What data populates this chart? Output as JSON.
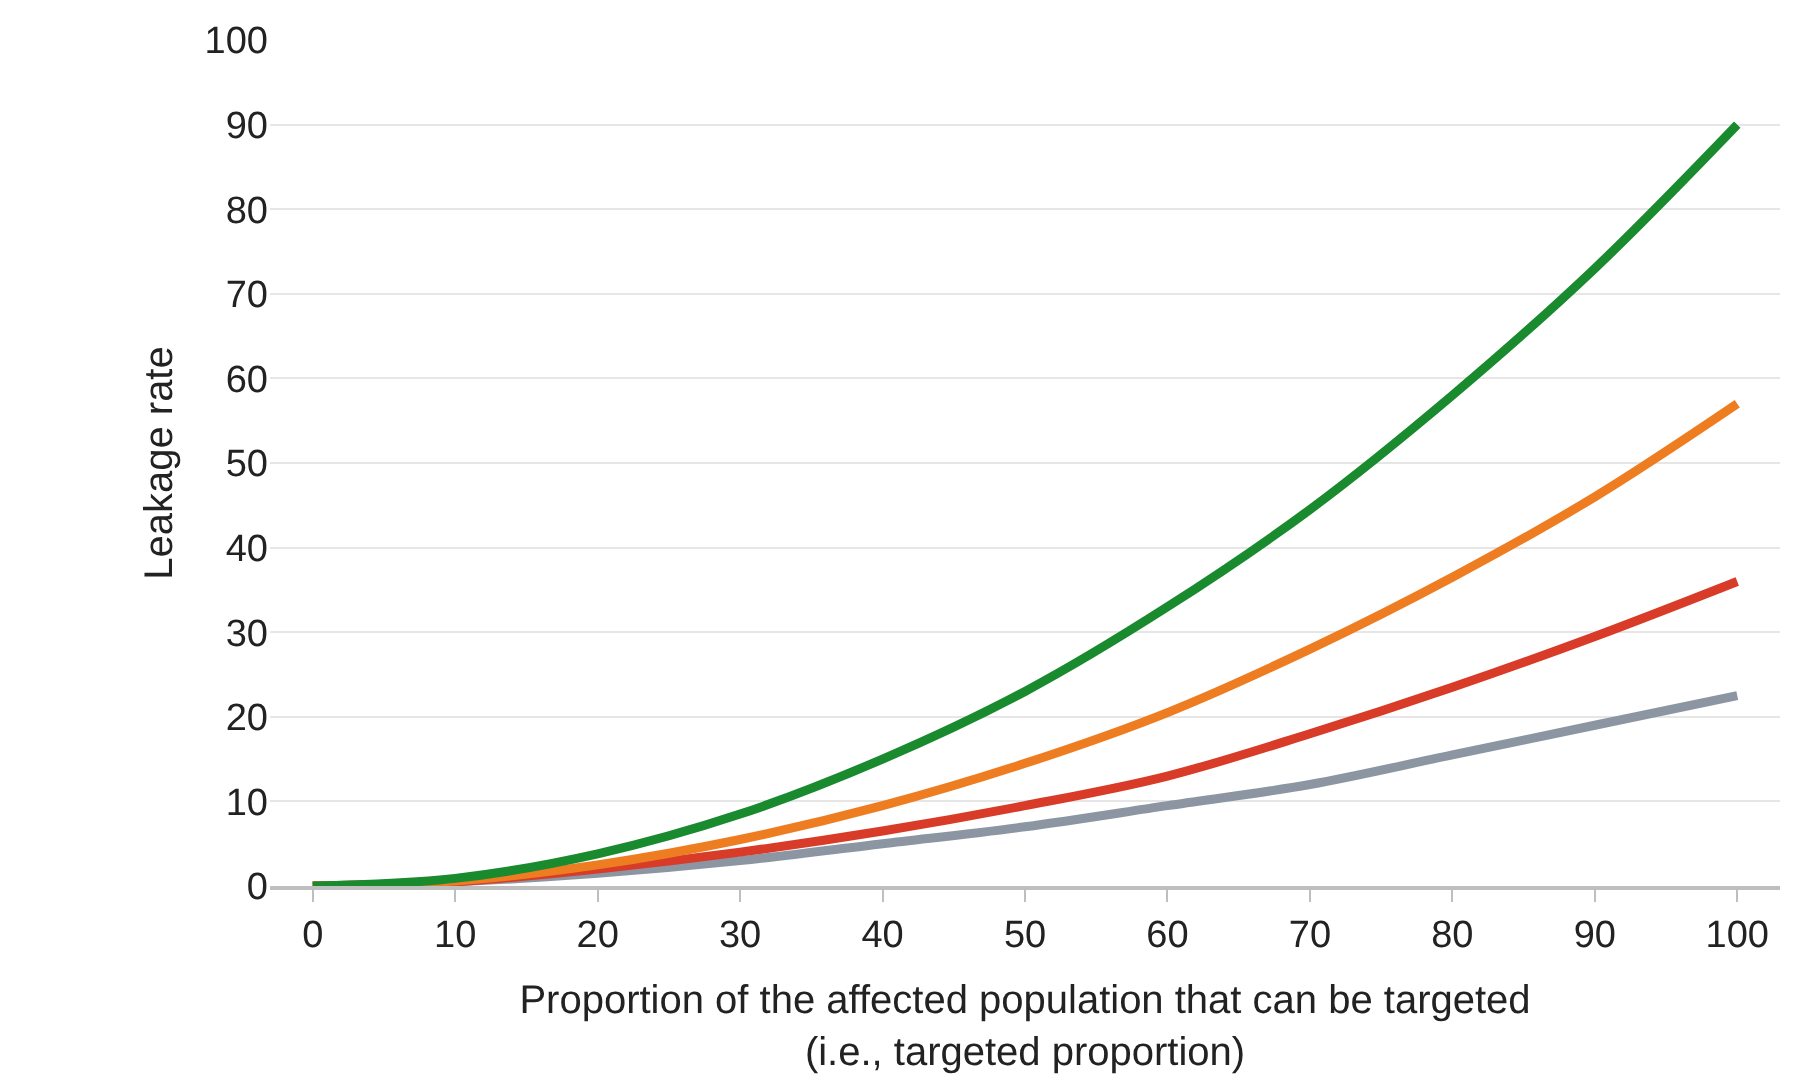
{
  "chart_data": {
    "type": "line",
    "xlabel": "Proportion of the affected population that can be targeted\n(i.e., targeted proportion)",
    "ylabel": "Leakage rate",
    "x": [
      0,
      10,
      20,
      30,
      40,
      50,
      60,
      70,
      80,
      90,
      100
    ],
    "series": [
      {
        "color": "#8c96a3",
        "values": [
          0,
          0.5,
          1.5,
          3,
          5,
          7,
          9.5,
          12,
          15.5,
          19,
          22.5
        ]
      },
      {
        "color": "#d83b27",
        "values": [
          0,
          0.5,
          2,
          4,
          6.5,
          9.5,
          13,
          18,
          23.5,
          29.5,
          36
        ]
      },
      {
        "color": "#ee7d22",
        "values": [
          0,
          0.6,
          2.5,
          5.5,
          9.5,
          14.5,
          20.5,
          28,
          36.5,
          46,
          57
        ]
      },
      {
        "color": "#1a8a2e",
        "values": [
          0,
          0.9,
          3.8,
          8.5,
          15,
          23,
          33,
          44.5,
          58,
          73,
          90
        ]
      }
    ],
    "xlim": [
      -3,
      103
    ],
    "xticks": [
      0,
      10,
      20,
      30,
      40,
      50,
      60,
      70,
      80,
      90,
      100
    ],
    "ylim": [
      0,
      100
    ],
    "yticks": [
      0,
      10,
      20,
      30,
      40,
      50,
      60,
      70,
      80,
      90,
      100
    ],
    "grid": "y",
    "marker": "none",
    "line_style": "solid"
  }
}
